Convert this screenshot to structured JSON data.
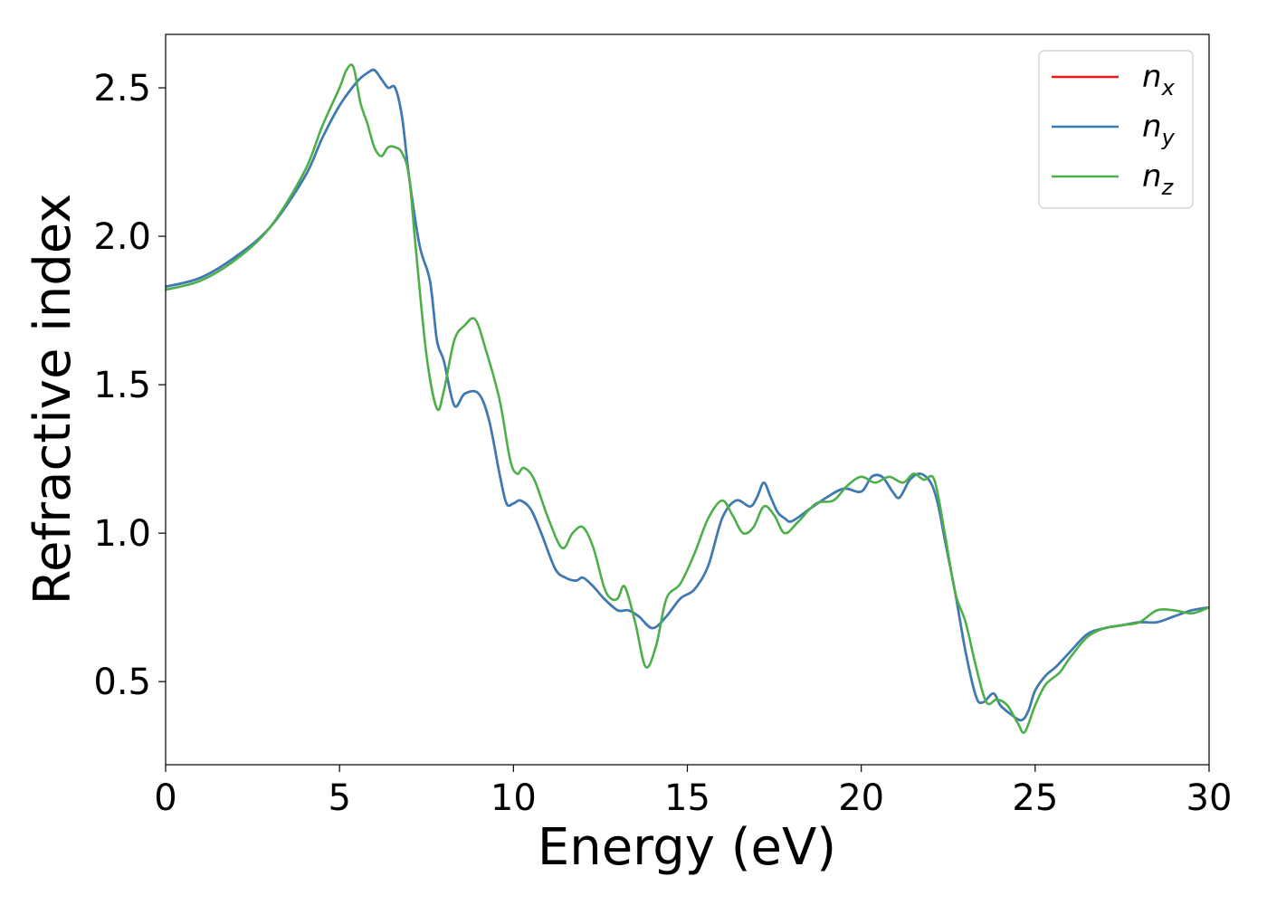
{
  "chart_data": {
    "type": "line",
    "xlabel": "Energy (eV)",
    "ylabel": "Refractive index",
    "xlim": [
      0,
      30
    ],
    "ylim": [
      0.22,
      2.68
    ],
    "xticks": [
      0,
      5,
      10,
      15,
      20,
      25,
      30
    ],
    "xtick_labels": [
      "0",
      "5",
      "10",
      "15",
      "20",
      "25",
      "30"
    ],
    "yticks": [
      0.5,
      1.0,
      1.5,
      2.0,
      2.5
    ],
    "ytick_labels": [
      "0.5",
      "1.0",
      "1.5",
      "2.0",
      "2.5"
    ],
    "grid": false,
    "legend_position": "top-right",
    "series": [
      {
        "name": "n_x",
        "label_main": "n",
        "label_sub": "x",
        "color": "#e41a1c",
        "x": [
          0,
          1,
          2,
          3,
          4,
          4.5,
          5,
          5.5,
          5.8,
          6.0,
          6.2,
          6.4,
          6.6,
          6.8,
          7.0,
          7.3,
          7.6,
          7.8,
          8.0,
          8.3,
          8.6,
          9.0,
          9.3,
          9.6,
          9.8,
          10.0,
          10.2,
          10.5,
          10.8,
          11.2,
          11.5,
          11.8,
          12.0,
          12.3,
          12.6,
          13.0,
          13.3,
          13.6,
          14.0,
          14.4,
          14.8,
          15.2,
          15.6,
          16.0,
          16.4,
          16.8,
          17.0,
          17.2,
          17.4,
          17.6,
          17.8,
          18.0,
          18.5,
          19.0,
          19.5,
          20.0,
          20.3,
          20.6,
          20.9,
          21.1,
          21.4,
          21.7,
          22.0,
          22.2,
          22.4,
          22.7,
          23.0,
          23.3,
          23.5,
          23.8,
          24.0,
          24.3,
          24.6,
          24.8,
          25.0,
          25.3,
          25.6,
          26.0,
          26.5,
          27.0,
          27.5,
          28.0,
          28.5,
          29.0,
          29.5,
          30.0
        ],
        "y": [
          1.83,
          1.86,
          1.93,
          2.03,
          2.2,
          2.33,
          2.44,
          2.52,
          2.55,
          2.56,
          2.53,
          2.5,
          2.5,
          2.4,
          2.2,
          1.97,
          1.85,
          1.65,
          1.58,
          1.43,
          1.47,
          1.47,
          1.38,
          1.2,
          1.1,
          1.1,
          1.11,
          1.08,
          1.0,
          0.88,
          0.85,
          0.84,
          0.85,
          0.82,
          0.78,
          0.74,
          0.74,
          0.72,
          0.68,
          0.72,
          0.78,
          0.81,
          0.89,
          1.05,
          1.11,
          1.09,
          1.12,
          1.17,
          1.12,
          1.07,
          1.05,
          1.04,
          1.08,
          1.12,
          1.15,
          1.14,
          1.19,
          1.19,
          1.14,
          1.12,
          1.18,
          1.2,
          1.17,
          1.1,
          0.98,
          0.8,
          0.6,
          0.45,
          0.43,
          0.46,
          0.42,
          0.39,
          0.37,
          0.4,
          0.47,
          0.52,
          0.55,
          0.6,
          0.66,
          0.68,
          0.69,
          0.7,
          0.7,
          0.72,
          0.74,
          0.75
        ]
      },
      {
        "name": "n_y",
        "label_main": "n",
        "label_sub": "y",
        "color": "#377eb8",
        "x": [
          0,
          1,
          2,
          3,
          4,
          4.5,
          5,
          5.5,
          5.8,
          6.0,
          6.2,
          6.4,
          6.6,
          6.8,
          7.0,
          7.3,
          7.6,
          7.8,
          8.0,
          8.3,
          8.6,
          9.0,
          9.3,
          9.6,
          9.8,
          10.0,
          10.2,
          10.5,
          10.8,
          11.2,
          11.5,
          11.8,
          12.0,
          12.3,
          12.6,
          13.0,
          13.3,
          13.6,
          14.0,
          14.4,
          14.8,
          15.2,
          15.6,
          16.0,
          16.4,
          16.8,
          17.0,
          17.2,
          17.4,
          17.6,
          17.8,
          18.0,
          18.5,
          19.0,
          19.5,
          20.0,
          20.3,
          20.6,
          20.9,
          21.1,
          21.4,
          21.7,
          22.0,
          22.2,
          22.4,
          22.7,
          23.0,
          23.3,
          23.5,
          23.8,
          24.0,
          24.3,
          24.6,
          24.8,
          25.0,
          25.3,
          25.6,
          26.0,
          26.5,
          27.0,
          27.5,
          28.0,
          28.5,
          29.0,
          29.5,
          30.0
        ],
        "y": [
          1.83,
          1.86,
          1.93,
          2.03,
          2.2,
          2.33,
          2.44,
          2.52,
          2.55,
          2.56,
          2.53,
          2.5,
          2.5,
          2.4,
          2.2,
          1.97,
          1.85,
          1.65,
          1.58,
          1.43,
          1.47,
          1.47,
          1.38,
          1.2,
          1.1,
          1.1,
          1.11,
          1.08,
          1.0,
          0.88,
          0.85,
          0.84,
          0.85,
          0.82,
          0.78,
          0.74,
          0.74,
          0.72,
          0.68,
          0.72,
          0.78,
          0.81,
          0.89,
          1.05,
          1.11,
          1.09,
          1.12,
          1.17,
          1.12,
          1.07,
          1.05,
          1.04,
          1.08,
          1.12,
          1.15,
          1.14,
          1.19,
          1.19,
          1.14,
          1.12,
          1.18,
          1.2,
          1.17,
          1.1,
          0.98,
          0.8,
          0.6,
          0.45,
          0.43,
          0.46,
          0.42,
          0.39,
          0.37,
          0.4,
          0.47,
          0.52,
          0.55,
          0.6,
          0.66,
          0.68,
          0.69,
          0.7,
          0.7,
          0.72,
          0.74,
          0.75
        ]
      },
      {
        "name": "n_z",
        "label_main": "n",
        "label_sub": "z",
        "color": "#4daf4a",
        "x": [
          0,
          1,
          2,
          3,
          4,
          4.5,
          5,
          5.2,
          5.4,
          5.6,
          5.8,
          6.0,
          6.2,
          6.4,
          6.6,
          6.8,
          7.0,
          7.2,
          7.5,
          7.8,
          8.0,
          8.3,
          8.6,
          8.9,
          9.2,
          9.6,
          9.9,
          10.1,
          10.3,
          10.6,
          11.0,
          11.4,
          11.7,
          12.0,
          12.3,
          12.6,
          12.8,
          13.0,
          13.2,
          13.5,
          13.8,
          14.1,
          14.4,
          14.8,
          15.2,
          15.6,
          16.0,
          16.3,
          16.6,
          16.9,
          17.2,
          17.5,
          17.8,
          18.2,
          18.7,
          19.2,
          19.6,
          20.0,
          20.4,
          20.8,
          21.2,
          21.5,
          21.8,
          22.1,
          22.4,
          22.7,
          23.0,
          23.3,
          23.6,
          23.9,
          24.2,
          24.5,
          24.7,
          25.0,
          25.3,
          25.7,
          26.0,
          26.5,
          27.0,
          27.5,
          28.0,
          28.5,
          29.0,
          29.5,
          30.0
        ],
        "y": [
          1.82,
          1.85,
          1.92,
          2.03,
          2.22,
          2.37,
          2.5,
          2.56,
          2.57,
          2.45,
          2.38,
          2.3,
          2.27,
          2.3,
          2.3,
          2.28,
          2.2,
          1.95,
          1.6,
          1.42,
          1.48,
          1.65,
          1.7,
          1.72,
          1.62,
          1.45,
          1.25,
          1.2,
          1.22,
          1.18,
          1.05,
          0.95,
          1.0,
          1.02,
          0.95,
          0.82,
          0.78,
          0.78,
          0.82,
          0.7,
          0.55,
          0.62,
          0.78,
          0.83,
          0.93,
          1.05,
          1.11,
          1.06,
          1.0,
          1.02,
          1.09,
          1.06,
          1.0,
          1.04,
          1.1,
          1.11,
          1.16,
          1.19,
          1.17,
          1.19,
          1.17,
          1.2,
          1.18,
          1.18,
          1.0,
          0.8,
          0.7,
          0.55,
          0.43,
          0.44,
          0.42,
          0.36,
          0.33,
          0.42,
          0.49,
          0.53,
          0.58,
          0.65,
          0.68,
          0.69,
          0.7,
          0.74,
          0.74,
          0.73,
          0.75
        ]
      }
    ]
  }
}
